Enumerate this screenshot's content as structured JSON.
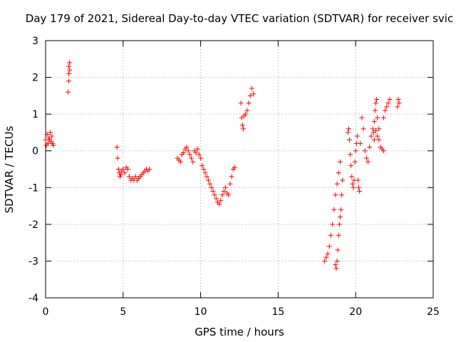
{
  "chart_data": {
    "type": "scatter",
    "title": "Day 179 of 2021, Sidereal Day-to-day VTEC variation (SDTVAR) for receiver svic",
    "xlabel": "GPS time / hours",
    "ylabel": "SDTVAR / TECUs",
    "xlim": [
      0,
      25
    ],
    "ylim": [
      -4,
      3
    ],
    "xticks": [
      0,
      5,
      10,
      15,
      20,
      25
    ],
    "yticks": [
      -4,
      -3,
      -2,
      -1,
      0,
      1,
      2,
      3
    ],
    "xtick_labels": [
      "0",
      "5",
      "10",
      "15",
      "20",
      "25"
    ],
    "ytick_labels": [
      "-4",
      "-3",
      "-2",
      "-1",
      "0",
      "1",
      "2",
      "3"
    ],
    "grid": true,
    "marker": "plus",
    "color": "#ff0000",
    "series": [
      {
        "name": "SDTVAR",
        "x": [
          0.0,
          0.05,
          0.1,
          0.15,
          0.2,
          0.25,
          0.3,
          0.35,
          0.4,
          0.45,
          0.5,
          1.45,
          1.5,
          1.5,
          1.5,
          1.55,
          1.55,
          4.6,
          4.65,
          4.7,
          4.75,
          4.8,
          4.85,
          4.9,
          5.0,
          5.1,
          5.2,
          5.3,
          5.4,
          5.5,
          5.6,
          5.7,
          5.8,
          5.9,
          6.0,
          6.1,
          6.2,
          6.3,
          6.4,
          6.5,
          6.6,
          6.7,
          8.5,
          8.6,
          8.7,
          8.8,
          8.9,
          9.0,
          9.1,
          9.2,
          9.3,
          9.4,
          9.5,
          9.6,
          9.7,
          9.8,
          9.9,
          10.0,
          10.1,
          10.2,
          10.3,
          10.4,
          10.5,
          10.6,
          10.7,
          10.8,
          10.9,
          11.0,
          11.1,
          11.2,
          11.3,
          11.4,
          11.5,
          11.6,
          11.7,
          11.8,
          11.9,
          12.0,
          12.1,
          12.2,
          12.6,
          12.65,
          12.7,
          12.75,
          12.8,
          12.9,
          13.0,
          13.1,
          13.2,
          13.3,
          13.4,
          18.0,
          18.1,
          18.2,
          18.3,
          18.4,
          18.5,
          18.6,
          18.7,
          18.8,
          18.9,
          19.0,
          18.7,
          18.75,
          18.8,
          18.85,
          18.9,
          18.95,
          19.0,
          19.05,
          19.1,
          19.15,
          19.5,
          19.55,
          19.6,
          19.65,
          19.7,
          19.75,
          19.8,
          19.85,
          19.9,
          19.95,
          20.0,
          20.05,
          20.1,
          20.15,
          20.2,
          20.25,
          20.3,
          20.4,
          20.5,
          20.6,
          20.7,
          20.8,
          20.9,
          21.0,
          21.1,
          21.15,
          21.2,
          21.25,
          21.3,
          21.35,
          21.4,
          21.5,
          21.6,
          21.7,
          21.8,
          21.2,
          21.3,
          21.4,
          21.5,
          21.8,
          21.9,
          22.0,
          22.1,
          22.2,
          22.7,
          22.75,
          22.8
        ],
        "y": [
          0.3,
          0.15,
          0.45,
          0.2,
          0.35,
          0.3,
          0.5,
          0.25,
          0.4,
          0.2,
          0.15,
          1.6,
          1.9,
          2.1,
          2.3,
          2.2,
          2.4,
          0.1,
          -0.2,
          -0.5,
          -0.6,
          -0.7,
          -0.65,
          -0.55,
          -0.5,
          -0.6,
          -0.45,
          -0.5,
          -0.7,
          -0.8,
          -0.75,
          -0.8,
          -0.7,
          -0.8,
          -0.75,
          -0.7,
          -0.65,
          -0.6,
          -0.55,
          -0.5,
          -0.55,
          -0.5,
          -0.2,
          -0.25,
          -0.3,
          -0.1,
          -0.05,
          0.05,
          0.1,
          0.0,
          -0.1,
          -0.2,
          -0.3,
          0.0,
          -0.05,
          0.05,
          -0.1,
          -0.2,
          -0.4,
          -0.5,
          -0.6,
          -0.7,
          -0.8,
          -0.9,
          -1.0,
          -1.1,
          -1.2,
          -1.3,
          -1.4,
          -1.45,
          -1.35,
          -1.2,
          -1.1,
          -1.0,
          -1.15,
          -1.2,
          -0.9,
          -0.7,
          -0.5,
          -0.45,
          1.3,
          0.9,
          0.7,
          0.6,
          0.95,
          1.0,
          1.1,
          1.3,
          1.5,
          1.7,
          1.55,
          -3.0,
          -2.9,
          -2.8,
          -2.6,
          -2.3,
          -2.0,
          -1.6,
          -1.2,
          -0.9,
          -0.6,
          -0.3,
          -3.1,
          -3.2,
          -3.0,
          -2.7,
          -2.3,
          -2.0,
          -1.8,
          -1.6,
          -1.2,
          -0.8,
          0.5,
          0.6,
          0.3,
          -0.1,
          -0.4,
          -0.7,
          -0.9,
          -1.0,
          -0.8,
          -0.3,
          0.0,
          0.2,
          0.4,
          -0.8,
          -1.0,
          -1.1,
          0.2,
          0.9,
          0.6,
          0.0,
          -0.2,
          -0.3,
          0.1,
          0.4,
          0.6,
          0.5,
          0.3,
          1.1,
          1.3,
          1.4,
          0.9,
          0.6,
          0.1,
          0.05,
          0.0,
          0.8,
          0.55,
          0.4,
          0.3,
          0.9,
          1.1,
          1.2,
          1.3,
          1.4,
          1.2,
          1.4,
          1.3
        ]
      }
    ]
  }
}
